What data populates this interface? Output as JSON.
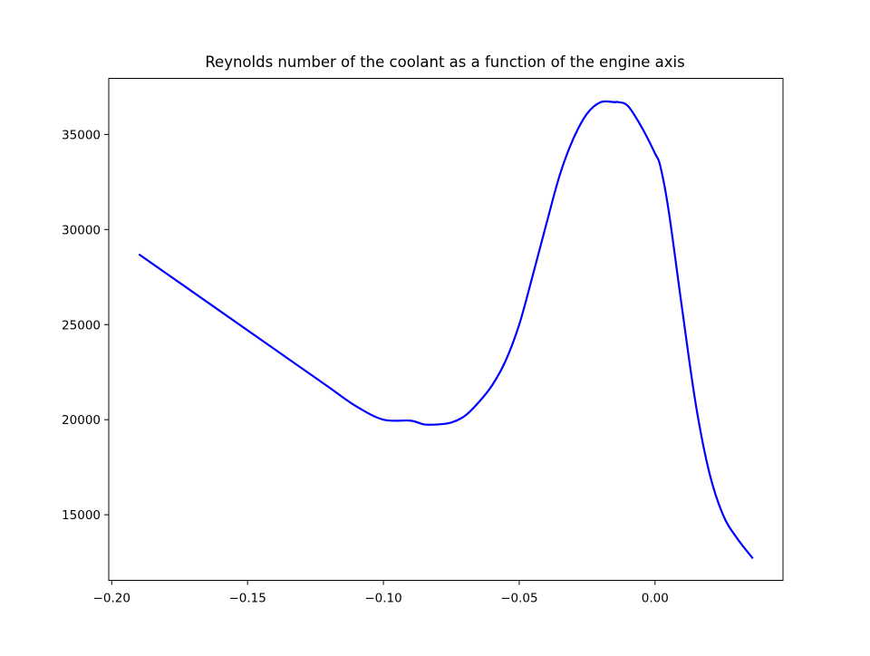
{
  "chart_data": {
    "type": "line",
    "title": "Reynolds number of the coolant as a function of the engine axis",
    "xlabel": "",
    "ylabel": "",
    "xlim": [
      -0.2011,
      0.0471
    ],
    "ylim": [
      11550,
      37950
    ],
    "x_ticks": [
      -0.2,
      -0.15,
      -0.1,
      -0.05,
      0.0
    ],
    "x_tick_labels": [
      "−0.20",
      "−0.15",
      "−0.10",
      "−0.05",
      "0.00"
    ],
    "y_ticks": [
      15000,
      20000,
      25000,
      30000,
      35000
    ],
    "y_tick_labels": [
      "15000",
      "20000",
      "25000",
      "30000",
      "35000"
    ],
    "grid": false,
    "series": [
      {
        "color": "#0000ff",
        "x": [
          -0.19,
          -0.18,
          -0.17,
          -0.16,
          -0.15,
          -0.14,
          -0.13,
          -0.12,
          -0.11,
          -0.1,
          -0.09,
          -0.085,
          -0.08,
          -0.075,
          -0.07,
          -0.065,
          -0.06,
          -0.055,
          -0.05,
          -0.045,
          -0.04,
          -0.035,
          -0.03,
          -0.025,
          -0.02,
          -0.015,
          -0.0135,
          -0.01,
          -0.005,
          0.0,
          0.002,
          0.005,
          0.01,
          0.015,
          0.02,
          0.025,
          0.03,
          0.036
        ],
        "y": [
          28700,
          27700,
          26700,
          25700,
          24700,
          23700,
          22700,
          21700,
          20700,
          20000,
          19950,
          19750,
          19750,
          19850,
          20200,
          20900,
          21800,
          23100,
          25000,
          27600,
          30300,
          32900,
          34800,
          36100,
          36700,
          36700,
          36700,
          36500,
          35400,
          34000,
          33300,
          31000,
          25800,
          20800,
          17200,
          15000,
          13800,
          12700
        ]
      }
    ]
  }
}
